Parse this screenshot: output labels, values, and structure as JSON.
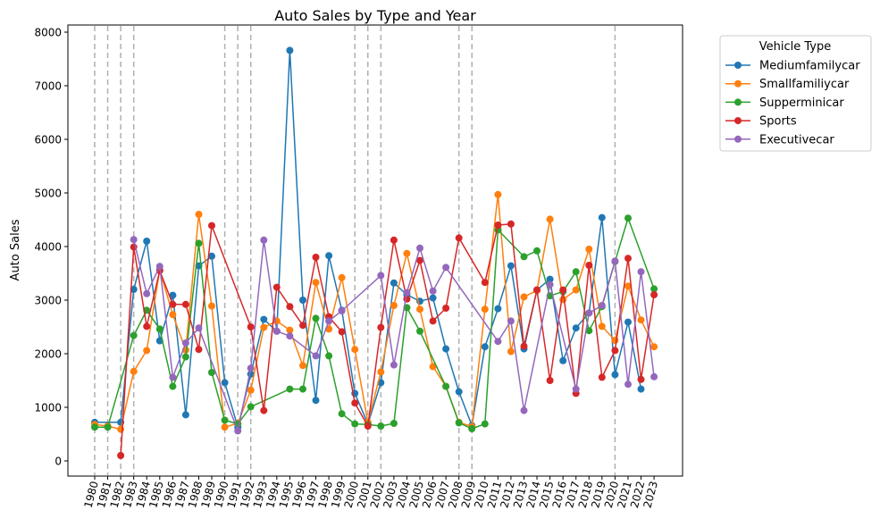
{
  "chart_data": {
    "type": "line",
    "title": "Auto Sales by Type and Year",
    "xlabel": "",
    "ylabel": "Auto Sales",
    "x": [
      1980,
      1981,
      1982,
      1983,
      1984,
      1985,
      1986,
      1987,
      1988,
      1989,
      1990,
      1991,
      1992,
      1993,
      1994,
      1995,
      1996,
      1997,
      1998,
      1999,
      2000,
      2001,
      2002,
      2003,
      2004,
      2005,
      2006,
      2007,
      2008,
      2009,
      2010,
      2011,
      2012,
      2013,
      2014,
      2015,
      2016,
      2017,
      2018,
      2019,
      2020,
      2021,
      2022,
      2023
    ],
    "ylim": [
      0,
      8000
    ],
    "yticks": [
      0,
      1000,
      2000,
      3000,
      4000,
      5000,
      6000,
      7000,
      8000
    ],
    "recession_years": [
      1980,
      1981,
      1982,
      1983,
      1990,
      1991,
      1992,
      2000,
      2001,
      2002,
      2008,
      2009,
      2020
    ],
    "grid": false,
    "legend": {
      "title": "Vehicle Type",
      "placement": "outside-top-right"
    },
    "series": [
      {
        "name": "Mediumfamilycar",
        "color": "#1f77b4",
        "points": [
          [
            1980,
            720
          ],
          [
            1982,
            720
          ],
          [
            1983,
            3200
          ],
          [
            1984,
            4100
          ],
          [
            1985,
            2240
          ],
          [
            1986,
            3090
          ],
          [
            1987,
            860
          ],
          [
            1988,
            3640
          ],
          [
            1989,
            3820
          ],
          [
            1990,
            1460
          ],
          [
            1991,
            630
          ],
          [
            1992,
            1620
          ],
          [
            1993,
            2640
          ],
          [
            1994,
            2420
          ],
          [
            1995,
            7660
          ],
          [
            1996,
            3000
          ],
          [
            1997,
            1130
          ],
          [
            1998,
            3830
          ],
          [
            1999,
            2810
          ],
          [
            2000,
            1260
          ],
          [
            2001,
            690
          ],
          [
            2002,
            1460
          ],
          [
            2003,
            3320
          ],
          [
            2004,
            3100
          ],
          [
            2005,
            2980
          ],
          [
            2006,
            3040
          ],
          [
            2007,
            2090
          ],
          [
            2008,
            1290
          ],
          [
            2009,
            660
          ],
          [
            2010,
            2130
          ],
          [
            2011,
            2840
          ],
          [
            2012,
            3640
          ],
          [
            2013,
            2090
          ],
          [
            2014,
            3190
          ],
          [
            2015,
            3390
          ],
          [
            2016,
            1870
          ],
          [
            2017,
            2480
          ],
          [
            2018,
            2760
          ],
          [
            2019,
            4540
          ],
          [
            2020,
            1610
          ],
          [
            2021,
            2590
          ],
          [
            2022,
            1340
          ]
        ]
      },
      {
        "name": "Smallfamiliycar",
        "color": "#ff7f0e",
        "points": [
          [
            1980,
            680
          ],
          [
            1981,
            650
          ],
          [
            1982,
            590
          ],
          [
            1983,
            1670
          ],
          [
            1984,
            2060
          ],
          [
            1985,
            3560
          ],
          [
            1986,
            2730
          ],
          [
            1987,
            2070
          ],
          [
            1988,
            4600
          ],
          [
            1989,
            2890
          ],
          [
            1990,
            630
          ],
          [
            1991,
            700
          ],
          [
            1992,
            1320
          ],
          [
            1993,
            2490
          ],
          [
            1994,
            2610
          ],
          [
            1995,
            2440
          ],
          [
            1996,
            1780
          ],
          [
            1997,
            3330
          ],
          [
            1998,
            2460
          ],
          [
            1999,
            3420
          ],
          [
            2000,
            2080
          ],
          [
            2001,
            720
          ],
          [
            2002,
            1660
          ],
          [
            2003,
            2900
          ],
          [
            2004,
            3870
          ],
          [
            2005,
            2830
          ],
          [
            2006,
            1760
          ],
          [
            2007,
            1390
          ],
          [
            2008,
            720
          ],
          [
            2009,
            640
          ],
          [
            2010,
            2830
          ],
          [
            2011,
            4970
          ],
          [
            2012,
            2040
          ],
          [
            2013,
            3060
          ],
          [
            2014,
            3180
          ],
          [
            2015,
            4510
          ],
          [
            2016,
            3010
          ],
          [
            2017,
            3190
          ],
          [
            2018,
            3950
          ],
          [
            2019,
            2510
          ],
          [
            2020,
            2250
          ],
          [
            2021,
            3260
          ],
          [
            2022,
            2630
          ],
          [
            2023,
            2130
          ]
        ]
      },
      {
        "name": "Supperminicar",
        "color": "#2ca02c",
        "points": [
          [
            1980,
            630
          ],
          [
            1981,
            630
          ],
          [
            1983,
            2340
          ],
          [
            1984,
            2810
          ],
          [
            1985,
            2460
          ],
          [
            1986,
            1390
          ],
          [
            1987,
            1940
          ],
          [
            1988,
            4060
          ],
          [
            1989,
            1650
          ],
          [
            1990,
            760
          ],
          [
            1991,
            690
          ],
          [
            1992,
            1010
          ],
          [
            1995,
            1340
          ],
          [
            1996,
            1340
          ],
          [
            1997,
            2660
          ],
          [
            1998,
            1960
          ],
          [
            1999,
            880
          ],
          [
            2000,
            690
          ],
          [
            2001,
            680
          ],
          [
            2002,
            650
          ],
          [
            2003,
            700
          ],
          [
            2004,
            2860
          ],
          [
            2005,
            2420
          ],
          [
            2007,
            1390
          ],
          [
            2008,
            710
          ],
          [
            2009,
            600
          ],
          [
            2010,
            690
          ],
          [
            2011,
            4310
          ],
          [
            2013,
            3810
          ],
          [
            2014,
            3920
          ],
          [
            2015,
            3080
          ],
          [
            2016,
            3160
          ],
          [
            2017,
            3530
          ],
          [
            2018,
            2430
          ],
          [
            2019,
            2880
          ],
          [
            2020,
            3720
          ],
          [
            2021,
            4530
          ],
          [
            2023,
            3210
          ]
        ]
      },
      {
        "name": "Sports",
        "color": "#d62728",
        "points": [
          [
            1982,
            100
          ],
          [
            1983,
            3990
          ],
          [
            1984,
            2510
          ],
          [
            1985,
            3550
          ],
          [
            1986,
            2920
          ],
          [
            1987,
            2920
          ],
          [
            1988,
            2080
          ],
          [
            1989,
            4390
          ],
          [
            1992,
            2500
          ],
          [
            1993,
            940
          ],
          [
            1994,
            3240
          ],
          [
            1995,
            2880
          ],
          [
            1996,
            2530
          ],
          [
            1997,
            3800
          ],
          [
            1998,
            2690
          ],
          [
            1999,
            2410
          ],
          [
            2000,
            1080
          ],
          [
            2001,
            650
          ],
          [
            2002,
            2490
          ],
          [
            2003,
            4120
          ],
          [
            2004,
            3020
          ],
          [
            2005,
            3740
          ],
          [
            2006,
            2610
          ],
          [
            2007,
            2850
          ],
          [
            2008,
            4160
          ],
          [
            2010,
            3330
          ],
          [
            2011,
            4400
          ],
          [
            2012,
            4420
          ],
          [
            2013,
            2140
          ],
          [
            2014,
            3190
          ],
          [
            2015,
            1500
          ],
          [
            2016,
            3190
          ],
          [
            2017,
            1260
          ],
          [
            2018,
            3650
          ],
          [
            2019,
            1560
          ],
          [
            2020,
            2060
          ],
          [
            2021,
            3780
          ],
          [
            2022,
            1520
          ],
          [
            2023,
            3100
          ]
        ]
      },
      {
        "name": "Executivecar",
        "color": "#9467bd",
        "points": [
          [
            1983,
            4130
          ],
          [
            1984,
            3120
          ],
          [
            1985,
            3630
          ],
          [
            1986,
            1560
          ],
          [
            1987,
            2200
          ],
          [
            1988,
            2480
          ],
          [
            1991,
            560
          ],
          [
            1992,
            1730
          ],
          [
            1993,
            4120
          ],
          [
            1994,
            2420
          ],
          [
            1995,
            2330
          ],
          [
            1997,
            1960
          ],
          [
            1998,
            2610
          ],
          [
            1999,
            2800
          ],
          [
            2002,
            3460
          ],
          [
            2003,
            1790
          ],
          [
            2004,
            3140
          ],
          [
            2005,
            3970
          ],
          [
            2006,
            3170
          ],
          [
            2007,
            3610
          ],
          [
            2011,
            2230
          ],
          [
            2012,
            2610
          ],
          [
            2013,
            940
          ],
          [
            2015,
            3290
          ],
          [
            2017,
            1340
          ],
          [
            2018,
            2760
          ],
          [
            2019,
            2900
          ],
          [
            2020,
            3730
          ],
          [
            2021,
            1430
          ],
          [
            2022,
            3530
          ],
          [
            2023,
            1570
          ]
        ]
      }
    ]
  }
}
